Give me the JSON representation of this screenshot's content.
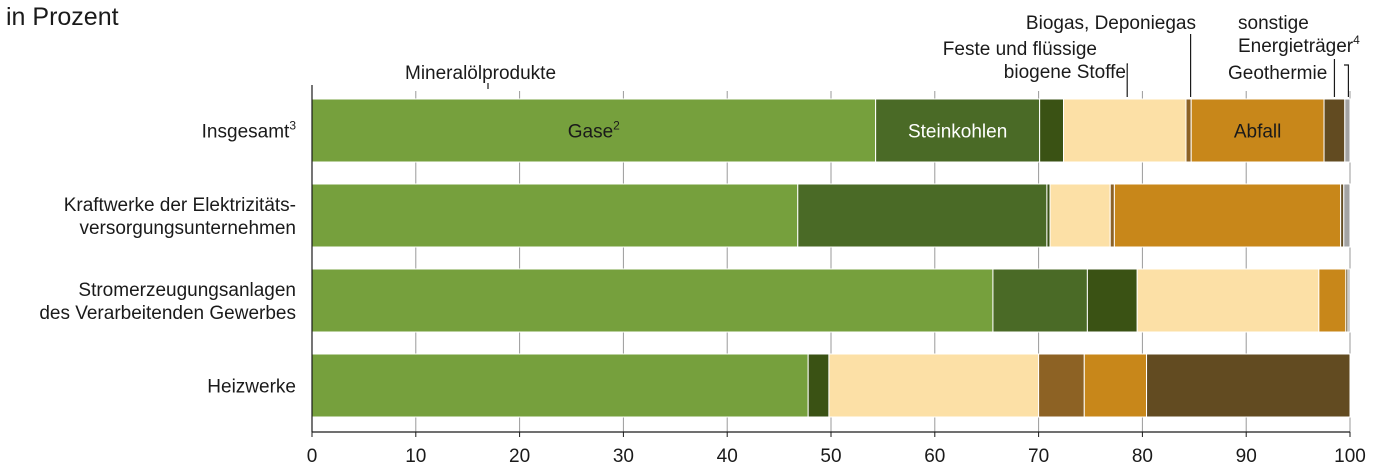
{
  "page": {
    "subtitle": "in Prozent"
  },
  "chart_data": {
    "type": "bar",
    "orientation": "horizontal",
    "stacked": true,
    "title": "",
    "subtitle": "in Prozent",
    "xlim": [
      0,
      100
    ],
    "x_ticks": [
      0,
      10,
      20,
      30,
      40,
      50,
      60,
      70,
      80,
      90,
      100
    ],
    "categories": [
      [
        "Insgesamt",
        "3"
      ],
      [
        "Kraftwerke der Elektrizitäts-",
        "versorgungsunternehmen"
      ],
      [
        "Stromerzeugungsanlagen",
        "des Verarbeitenden Gewerbes"
      ],
      [
        "Heizwerke"
      ]
    ],
    "series": [
      {
        "name": "Gase",
        "sup": "2",
        "color": "#76a03d",
        "values": [
          54.3,
          46.8,
          65.6,
          47.8
        ]
      },
      {
        "name": "Steinkohlen",
        "color": "#4a6a26",
        "values": [
          15.8,
          24.0,
          9.1,
          0.0
        ]
      },
      {
        "name": "Mineralölprodukte",
        "color": "#3a5214",
        "values": [
          2.3,
          0.3,
          4.8,
          2.0
        ]
      },
      {
        "name": "Feste und flüssige biogene Stoffe",
        "color": "#fce0a6",
        "values": [
          11.8,
          5.8,
          17.5,
          20.2
        ]
      },
      {
        "name": "Biogas, Deponiegas",
        "color": "#8d6224",
        "values": [
          0.5,
          0.4,
          0.0,
          4.4
        ]
      },
      {
        "name": "Abfall",
        "color": "#c8871a",
        "values": [
          12.8,
          21.8,
          2.6,
          6.0
        ]
      },
      {
        "name": "sonstige Energieträger",
        "sup": "4",
        "color": "#624b21",
        "values": [
          2.0,
          0.3,
          0.2,
          19.6
        ]
      },
      {
        "name": "Geothermie",
        "color": "#a3a3a3",
        "values": [
          0.5,
          0.6,
          0.2,
          0.0
        ]
      }
    ],
    "annotations": [
      {
        "text": [
          "Mineralölprodukte"
        ],
        "series": "Mineralölprodukte"
      },
      {
        "text": [
          "Feste und flüssige",
          "biogene Stoffe"
        ],
        "series": "Feste und flüssige biogene Stoffe"
      },
      {
        "text": [
          "Biogas, Deponiegas"
        ],
        "series": "Biogas, Deponiegas"
      },
      {
        "text": [
          "sonstige",
          "Energieträger"
        ],
        "sup": "4",
        "series": "sonstige Energieträger"
      },
      {
        "text": [
          "Geothermie"
        ],
        "series": "Geothermie"
      }
    ],
    "bar_labels": [
      {
        "series": "Gase",
        "text": "Gase",
        "sup": "2"
      },
      {
        "series": "Steinkohlen",
        "text": "Steinkohlen"
      },
      {
        "series": "Abfall",
        "text": "Abfall"
      }
    ]
  }
}
